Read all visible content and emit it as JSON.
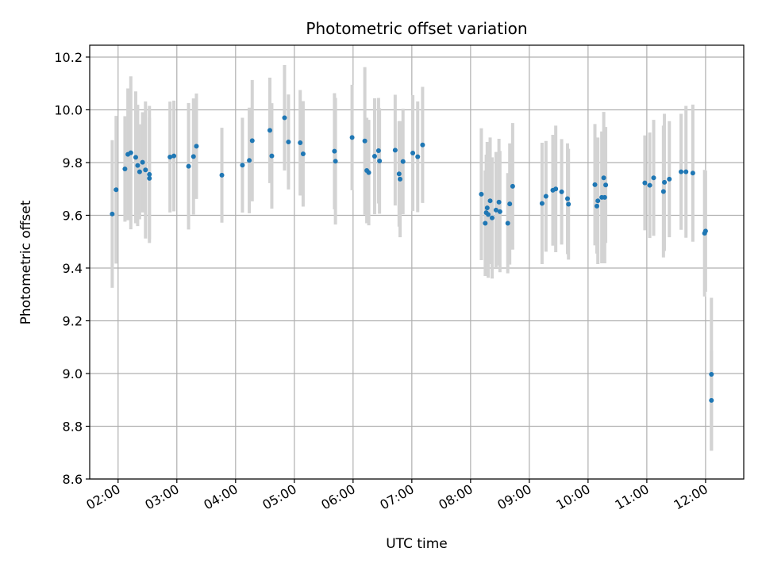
{
  "chart_data": {
    "type": "scatter",
    "title": "Photometric offset variation",
    "xlabel": "UTC time",
    "ylabel": "Photometric offset",
    "grid": true,
    "xlim": [
      "01:31",
      "12:39"
    ],
    "ylim": [
      8.6,
      10.245
    ],
    "x_ticks": [
      "02:00",
      "03:00",
      "04:00",
      "05:00",
      "06:00",
      "07:00",
      "08:00",
      "09:00",
      "10:00",
      "11:00",
      "12:00"
    ],
    "y_ticks": [
      8.6,
      8.8,
      9.0,
      9.2,
      9.4,
      9.6,
      9.8,
      10.0,
      10.2
    ],
    "colors": {
      "points": "#1f77b4",
      "errorbars": "#d3d3d3",
      "grid": "#b0b0b0"
    },
    "series": [
      {
        "x": [
          "01:54",
          "01:58",
          "02:07",
          "02:10",
          "02:13",
          "02:18",
          "02:20",
          "02:22",
          "02:25",
          "02:28",
          "02:32",
          "02:32",
          "02:53",
          "02:57",
          "03:12",
          "03:17",
          "03:20",
          "03:46",
          "04:07",
          "04:14",
          "04:17",
          "04:35",
          "04:37",
          "04:50",
          "04:54",
          "05:06",
          "05:09",
          "05:41",
          "05:42",
          "05:59",
          "06:12",
          "06:14",
          "06:16",
          "06:22",
          "06:26",
          "06:27",
          "06:43",
          "06:47",
          "06:48",
          "06:51",
          "07:01",
          "07:06",
          "07:11",
          "08:11",
          "08:15",
          "08:16",
          "08:17",
          "08:18",
          "08:20",
          "08:22",
          "08:26",
          "08:29",
          "08:30",
          "08:38",
          "08:40",
          "08:43",
          "09:13",
          "09:17",
          "09:24",
          "09:27",
          "09:33",
          "09:39",
          "09:40",
          "10:07",
          "10:09",
          "10:10",
          "10:14",
          "10:16",
          "10:17",
          "10:18",
          "10:58",
          "11:03",
          "11:07",
          "11:17",
          "11:18",
          "11:23",
          "11:35",
          "11:40",
          "11:47",
          "11:59",
          "12:00",
          "12:06",
          "12:06"
        ],
        "y": [
          9.605,
          9.697,
          9.776,
          9.831,
          9.837,
          9.82,
          9.789,
          9.765,
          9.801,
          9.772,
          9.755,
          9.74,
          9.821,
          9.825,
          9.786,
          9.823,
          9.862,
          9.752,
          9.79,
          9.808,
          9.883,
          9.922,
          9.825,
          9.97,
          9.878,
          9.875,
          9.833,
          9.843,
          9.805,
          9.895,
          9.882,
          9.77,
          9.762,
          9.824,
          9.845,
          9.806,
          9.847,
          9.757,
          9.737,
          9.804,
          9.836,
          9.822,
          9.867,
          9.68,
          9.57,
          9.61,
          9.628,
          9.603,
          9.655,
          9.59,
          9.62,
          9.65,
          9.614,
          9.57,
          9.643,
          9.71,
          9.645,
          9.672,
          9.695,
          9.7,
          9.689,
          9.663,
          9.642,
          9.716,
          9.635,
          9.655,
          9.668,
          9.742,
          9.668,
          9.715,
          9.723,
          9.714,
          9.742,
          9.69,
          9.725,
          9.737,
          9.765,
          9.765,
          9.76,
          9.532,
          9.54,
          8.898,
          8.997
        ],
        "err": [
          0.28,
          0.28,
          0.2,
          0.25,
          0.29,
          0.25,
          0.23,
          0.18,
          0.19,
          0.26,
          0.26,
          0.23,
          0.21,
          0.21,
          0.24,
          0.22,
          0.2,
          0.18,
          0.18,
          0.2,
          0.23,
          0.2,
          0.2,
          0.2,
          0.18,
          0.2,
          0.2,
          0.22,
          0.24,
          0.2,
          0.28,
          0.2,
          0.2,
          0.22,
          0.2,
          0.2,
          0.21,
          0.2,
          0.22,
          0.2,
          0.22,
          0.21,
          0.22,
          0.25,
          0.2,
          0.22,
          0.25,
          0.24,
          0.24,
          0.23,
          0.22,
          0.24,
          0.23,
          0.19,
          0.23,
          0.24,
          0.23,
          0.21,
          0.21,
          0.24,
          0.2,
          0.21,
          0.21,
          0.23,
          0.18,
          0.24,
          0.25,
          0.25,
          0.25,
          0.22,
          0.18,
          0.2,
          0.22,
          0.25,
          0.26,
          0.22,
          0.22,
          0.25,
          0.26,
          0.24,
          0.23,
          0.19,
          0.29
        ]
      }
    ]
  }
}
